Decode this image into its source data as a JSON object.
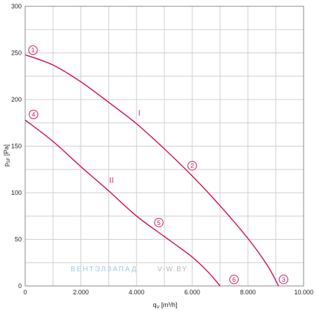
{
  "chart_data": {
    "type": "line",
    "xlabel": "q",
    "xlabel_sub": "V",
    "xlabel_unit": " [m³/h]",
    "ylabel": "p",
    "ylabel_sub": "SF",
    "ylabel_unit": " [Pa]",
    "xlim": [
      0,
      10000
    ],
    "ylim": [
      0,
      300
    ],
    "x_ticks": [
      0,
      2000,
      4000,
      6000,
      8000,
      10000
    ],
    "x_tick_labels": [
      "0",
      "2.000",
      "4.000",
      "6.000",
      "8.000",
      "10.000"
    ],
    "y_ticks": [
      0,
      50,
      100,
      150,
      200,
      250,
      300
    ],
    "y_tick_labels": [
      "0",
      "50",
      "100",
      "150",
      "200",
      "250",
      "300"
    ],
    "x_minor_step": 1000,
    "y_minor_step": 25,
    "grid": true,
    "line_color": "#d4145a",
    "series": [
      {
        "name": "I",
        "x": [
          0,
          1000,
          2000,
          3000,
          4000,
          5000,
          6000,
          7000,
          8000,
          8700,
          9100
        ],
        "y": [
          248,
          237,
          219,
          197,
          174,
          147,
          118,
          86,
          51,
          22,
          0
        ]
      },
      {
        "name": "II",
        "x": [
          0,
          1000,
          2000,
          3000,
          4000,
          5000,
          6000,
          6600,
          7000
        ],
        "y": [
          178,
          155,
          128,
          102,
          75,
          53,
          31,
          14,
          0
        ]
      }
    ],
    "markers": [
      {
        "label": "1",
        "x": 280,
        "y": 253
      },
      {
        "label": "2",
        "x": 6000,
        "y": 129
      },
      {
        "label": "3",
        "x": 9280,
        "y": 7
      },
      {
        "label": "4",
        "x": 300,
        "y": 184
      },
      {
        "label": "5",
        "x": 4800,
        "y": 68
      },
      {
        "label": "6",
        "x": 7500,
        "y": 7
      }
    ],
    "curve_labels": [
      {
        "label": "I",
        "x": 4100,
        "y": 183
      },
      {
        "label": "II",
        "x": 3100,
        "y": 111
      }
    ]
  },
  "watermark": {
    "brand": "ВЕНТЭЛЗАПАД",
    "site": "V-W.BY"
  }
}
